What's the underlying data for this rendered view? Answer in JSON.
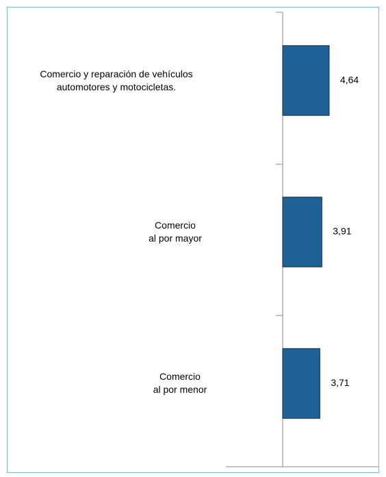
{
  "chart_data": {
    "type": "bar",
    "orientation": "horizontal",
    "categories": [
      "Comercio y reparación de vehículos\nautomotores y motocicletas.",
      "Comercio\nal por mayor",
      "Comercio\nal por menor"
    ],
    "values": [
      4.64,
      3.91,
      3.71
    ],
    "value_labels": [
      "4,64",
      "3,91",
      "3,71"
    ],
    "color": "#1f6396"
  }
}
